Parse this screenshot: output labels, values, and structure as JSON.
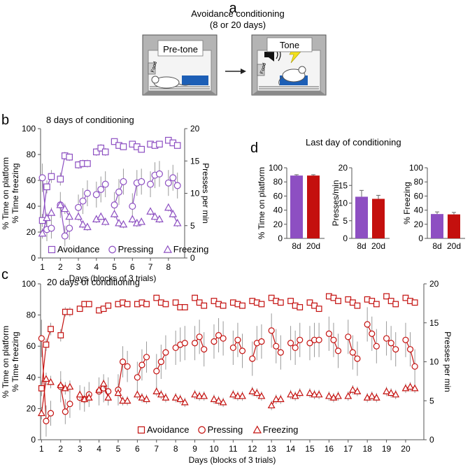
{
  "panel_a": {
    "letter": "a",
    "title": "Avoidance conditioning",
    "subtitle": "(8 or 20 days)",
    "box1_label": "Pre-tone",
    "box2_label": "Tone",
    "food_label": "Food",
    "colors": {
      "box": "#9a9a9a",
      "box_dark": "#555555",
      "platform": "#1d5fb6",
      "bolt": "#f2e01a"
    }
  },
  "chart_data": [
    {
      "id": "b",
      "type": "scatter",
      "letter": "b",
      "title": "8 days of conditioning",
      "xlabel": "Days (blocks of 3 trials)",
      "ylabel_left": [
        "% Time on platform",
        "% Time freezing"
      ],
      "ylabel_right": "Presses per min",
      "xlim": [
        0.9,
        8.9
      ],
      "ylim": [
        0,
        100
      ],
      "y2lim": [
        0,
        20
      ],
      "xticks": [
        1,
        2,
        3,
        4,
        5,
        6,
        7,
        8
      ],
      "yticks": [
        0,
        20,
        40,
        60,
        80,
        100
      ],
      "y2ticks": [
        0,
        5,
        10,
        15,
        20
      ],
      "grid": false,
      "legend": "bottom",
      "color": "#8d4fc2",
      "days": 8,
      "series": [
        {
          "name": "Avoidance",
          "marker": "square",
          "axis": "left",
          "values": [
            29,
            55,
            63,
            61,
            79,
            78,
            72,
            73,
            73,
            82,
            85,
            82,
            90,
            87,
            86,
            88,
            86,
            84,
            88,
            87,
            88,
            91,
            89,
            87
          ],
          "err": [
            5,
            5,
            5,
            5,
            3,
            3,
            3,
            3,
            3,
            3,
            3,
            3,
            2,
            2,
            2,
            2,
            2,
            2,
            2,
            2,
            2,
            2,
            2,
            2
          ]
        },
        {
          "name": "Pressing",
          "marker": "circle",
          "axis": "right",
          "values": [
            12.4,
            4.4,
            4.6,
            8.2,
            3.4,
            4.6,
            7.8,
            8.8,
            10.0,
            9.8,
            10.6,
            11.4,
            8.2,
            10.2,
            11.8,
            8.0,
            11.6,
            11.8,
            11.4,
            12.8,
            13.0,
            11.6,
            12.4,
            11.2
          ],
          "err": [
            2.2,
            1.8,
            1.6,
            2.0,
            1.6,
            1.8,
            2.0,
            2.0,
            2.0,
            2.0,
            2.0,
            2.0,
            2.0,
            2.0,
            2.0,
            2.0,
            2.0,
            2.0,
            2.0,
            2.0,
            2.0,
            2.0,
            2.0,
            2.0
          ]
        },
        {
          "name": "Freezing",
          "marker": "triangle",
          "axis": "left",
          "values": [
            19,
            31,
            35,
            41,
            38,
            32,
            32,
            26,
            24,
            30,
            32,
            28,
            34,
            27,
            26,
            30,
            27,
            28,
            36,
            32,
            30,
            39,
            34,
            27
          ],
          "err": [
            4,
            4,
            4,
            4,
            4,
            4,
            3,
            3,
            3,
            3,
            3,
            3,
            3,
            3,
            3,
            3,
            3,
            3,
            3,
            3,
            3,
            3,
            3,
            3
          ]
        }
      ]
    },
    {
      "id": "c",
      "type": "scatter",
      "letter": "c",
      "title": "20 days of conditioning",
      "xlabel": "Days (blocks of 3 trials)",
      "ylabel_left": [
        "% Time on platform",
        "% Time freezing"
      ],
      "ylabel_right": "Presses per min",
      "xlim": [
        0.95,
        20.95
      ],
      "ylim": [
        0,
        100
      ],
      "y2lim": [
        0,
        20
      ],
      "xticks": [
        1,
        2,
        3,
        4,
        5,
        6,
        7,
        8,
        9,
        10,
        11,
        12,
        13,
        14,
        15,
        16,
        17,
        18,
        19,
        20
      ],
      "yticks": [
        0,
        20,
        40,
        60,
        80,
        100
      ],
      "y2ticks": [
        0,
        5,
        10,
        15,
        20
      ],
      "grid": false,
      "legend": "bottom",
      "color": "#c4100e",
      "days": 20,
      "series": [
        {
          "name": "Avoidance",
          "marker": "square",
          "axis": "left",
          "values": [
            33,
            61,
            71,
            67,
            82,
            82,
            84,
            87,
            87,
            83,
            84,
            86,
            87,
            88,
            87,
            87,
            88,
            87,
            91,
            88,
            87,
            88,
            85,
            85,
            91,
            88,
            86,
            89,
            87,
            86,
            88,
            87,
            86,
            89,
            88,
            87,
            91,
            89,
            88,
            89,
            86,
            85,
            88,
            86,
            84,
            92,
            91,
            89,
            90,
            88,
            86,
            90,
            89,
            87,
            92,
            89,
            87,
            91,
            89,
            88
          ],
          "err": [
            5,
            4,
            4,
            4,
            3,
            3,
            2,
            2,
            2,
            2,
            2,
            2,
            2,
            2,
            2,
            2,
            2,
            2,
            2,
            2,
            2,
            2,
            2,
            2,
            2,
            2,
            2,
            2,
            2,
            2,
            2,
            2,
            2,
            2,
            2,
            2,
            2,
            2,
            2,
            2,
            2,
            2,
            2,
            2,
            2,
            2,
            2,
            2,
            2,
            2,
            2,
            2,
            2,
            2,
            2,
            2,
            2,
            2,
            2,
            2
          ]
        },
        {
          "name": "Pressing",
          "marker": "circle",
          "axis": "right",
          "values": [
            13.0,
            2.4,
            3.4,
            6.8,
            3.6,
            4.6,
            5.4,
            5.2,
            5.8,
            6.2,
            6.6,
            6.2,
            6.4,
            10.0,
            9.4,
            8.0,
            9.6,
            10.6,
            8.8,
            10.0,
            11.2,
            11.8,
            12.2,
            12.4,
            12.4,
            13.2,
            11.6,
            12.6,
            13.4,
            13.0,
            11.8,
            12.8,
            11.4,
            10.4,
            12.4,
            12.6,
            14.0,
            12.0,
            11.2,
            12.4,
            11.8,
            12.8,
            12.4,
            12.8,
            12.8,
            13.6,
            12.8,
            11.4,
            13.2,
            11.2,
            10.4,
            14.8,
            13.6,
            12.0,
            13.0,
            12.4,
            11.6,
            12.8,
            11.6,
            9.4
          ],
          "err": [
            2.4,
            2.0,
            1.6,
            2.0,
            1.6,
            1.8,
            1.6,
            1.6,
            1.6,
            1.8,
            1.8,
            1.8,
            2.0,
            2.0,
            2.0,
            2.0,
            2.0,
            2.0,
            2.2,
            2.2,
            2.2,
            2.2,
            2.2,
            2.2,
            2.2,
            2.2,
            2.2,
            2.2,
            2.2,
            2.2,
            2.2,
            2.2,
            2.2,
            2.2,
            2.2,
            2.2,
            2.2,
            2.2,
            2.2,
            2.2,
            2.2,
            2.2,
            2.2,
            2.2,
            2.2,
            2.2,
            2.2,
            2.2,
            2.2,
            2.2,
            2.2,
            2.2,
            2.2,
            2.2,
            2.2,
            2.2,
            2.2,
            2.2,
            2.2,
            2.2
          ]
        },
        {
          "name": "Freezing",
          "marker": "triangle",
          "axis": "left",
          "values": [
            17,
            39,
            37,
            35,
            33,
            34,
            29,
            26,
            27,
            32,
            36,
            27,
            30,
            25,
            25,
            29,
            27,
            26,
            31,
            29,
            27,
            27,
            26,
            24,
            29,
            28,
            28,
            26,
            25,
            24,
            29,
            28,
            28,
            31,
            30,
            28,
            22,
            26,
            26,
            29,
            28,
            30,
            30,
            29,
            29,
            28,
            27,
            28,
            28,
            32,
            31,
            27,
            28,
            27,
            31,
            30,
            29,
            33,
            34,
            33
          ],
          "err": [
            4,
            4,
            4,
            4,
            4,
            4,
            3,
            3,
            3,
            3,
            3,
            3,
            3,
            3,
            3,
            3,
            3,
            3,
            3,
            3,
            3,
            3,
            3,
            3,
            3,
            3,
            3,
            3,
            3,
            3,
            3,
            3,
            3,
            3,
            3,
            3,
            3,
            3,
            3,
            3,
            3,
            3,
            3,
            3,
            3,
            3,
            3,
            3,
            3,
            3,
            3,
            3,
            3,
            3,
            3,
            3,
            3,
            3,
            3,
            3
          ]
        }
      ]
    },
    {
      "id": "d",
      "type": "bar",
      "letter": "d",
      "title": "Last day of conditioning",
      "categories": [
        "8d",
        "20d"
      ],
      "colors": [
        "#8d4fc2",
        "#c4100e"
      ],
      "subplots": [
        {
          "ylabel": "% Time on platform",
          "ylim": [
            0,
            100
          ],
          "yticks": [
            0,
            20,
            40,
            60,
            80,
            100
          ],
          "values": [
            89,
            89
          ],
          "err": [
            1.2,
            1.2
          ]
        },
        {
          "ylabel": "Presses/min",
          "ylim": [
            0,
            20
          ],
          "yticks": [
            0,
            5,
            10,
            15,
            20
          ],
          "values": [
            11.8,
            11.2
          ],
          "err": [
            1.8,
            1.0
          ]
        },
        {
          "ylabel": "% Freezing",
          "ylim": [
            0,
            100
          ],
          "yticks": [
            0,
            20,
            40,
            60,
            80,
            100
          ],
          "values": [
            34.5,
            34.0
          ],
          "err": [
            3.0,
            2.8
          ]
        }
      ]
    }
  ]
}
